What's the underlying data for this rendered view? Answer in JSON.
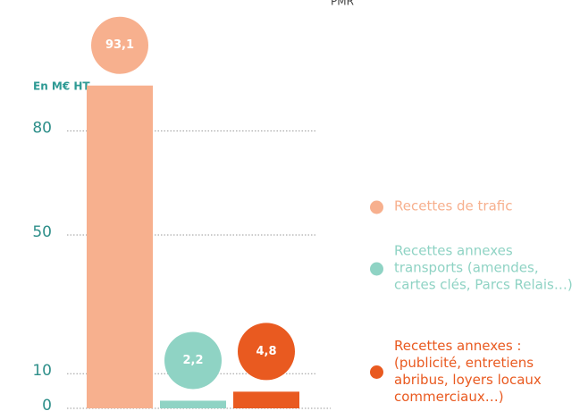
{
  "chart_data": {
    "type": "bar",
    "annotation": "PMR",
    "y_label": "En M€ HT",
    "ylim": [
      0,
      117
    ],
    "yticks": [
      0,
      10,
      50,
      80
    ],
    "grid": true,
    "series": [
      {
        "name": "Recettes de trafic",
        "color": "#f7b08e",
        "values": [
          93.1
        ],
        "value_labels": [
          "93,1"
        ]
      },
      {
        "name": "Recettes annexes transports (amendes, cartes clés, Parcs Relais…)",
        "color": "#8fd3c4",
        "values": [
          2.2
        ],
        "value_labels": [
          "2,2"
        ]
      },
      {
        "name": "Recettes annexes : (publicité, entretiens abribus, loyers locaux commerciaux…)",
        "color": "#e95a20",
        "values": [
          4.8
        ],
        "value_labels": [
          "4,8"
        ]
      }
    ]
  }
}
